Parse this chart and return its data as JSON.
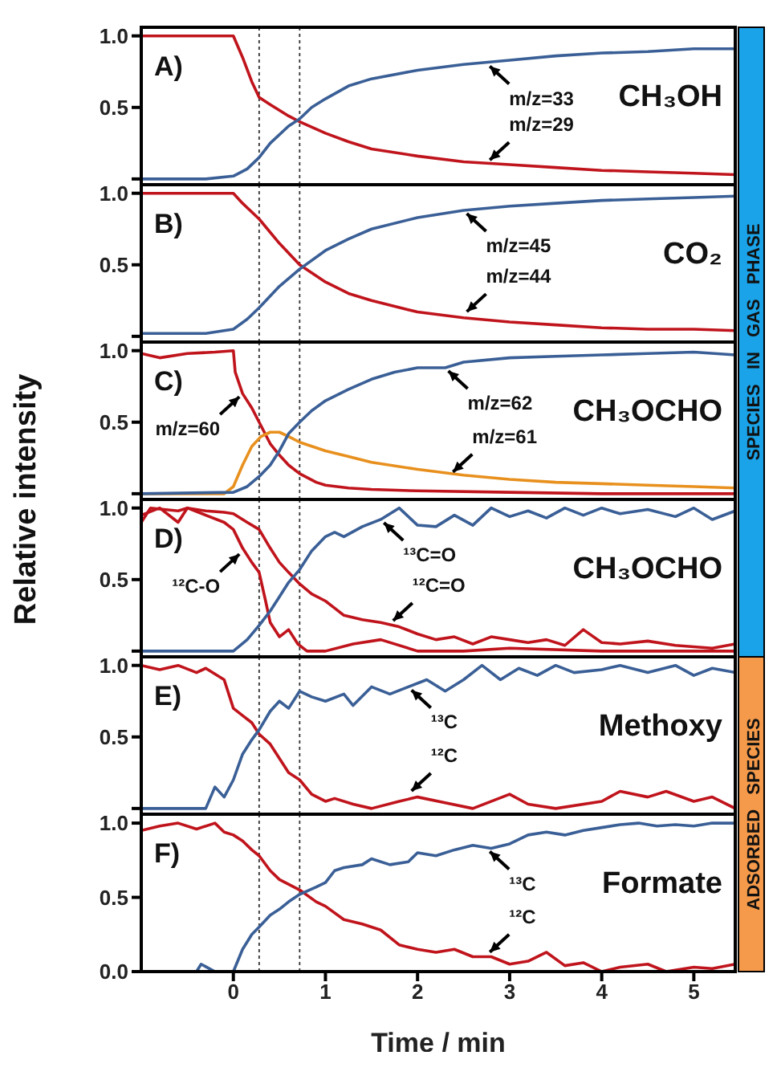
{
  "chart_data": [
    {
      "type": "line",
      "xlim": [
        -1,
        5.45
      ],
      "xticks": [
        0,
        1,
        2,
        3,
        4,
        5
      ],
      "ylim": [
        -0.04,
        1.06
      ],
      "yticks": [
        {
          "value": 0,
          "label": null
        },
        {
          "value": 0.5,
          "label": "0.5"
        },
        {
          "value": 1,
          "label": "1.0"
        }
      ],
      "tick_labels": "y",
      "ref_lines": [
        {
          "axis": "x",
          "value": 0.28,
          "line_style": "dotted",
          "color": "#333333"
        },
        {
          "axis": "x",
          "value": 0.72,
          "line_style": "dotted",
          "color": "#333333"
        }
      ],
      "annotations": [
        "A)",
        "CH₃OH",
        "SPECIES IN GAS PHASE",
        {
          "text": "m/z=33",
          "x": 2.75,
          "y": 0.81
        },
        {
          "text": "m/z=29",
          "x": 2.75,
          "y": 0.11
        }
      ],
      "series": [
        {
          "color": "#c0141c",
          "x": [
            -1,
            -0.5,
            0,
            0.1,
            0.2,
            0.28,
            0.4,
            0.6,
            0.72,
            1,
            1.25,
            1.5,
            2,
            2.5,
            3,
            3.5,
            4,
            4.5,
            5,
            5.45
          ],
          "values": [
            1,
            1,
            1,
            0.85,
            0.68,
            0.57,
            0.52,
            0.44,
            0.4,
            0.32,
            0.26,
            0.21,
            0.16,
            0.12,
            0.1,
            0.08,
            0.06,
            0.05,
            0.04,
            0.03
          ]
        },
        {
          "color": "#3a5f96",
          "x": [
            -1,
            -0.3,
            0,
            0.15,
            0.28,
            0.4,
            0.6,
            0.72,
            0.85,
            1,
            1.25,
            1.5,
            2,
            2.5,
            3,
            3.5,
            4,
            4.5,
            5,
            5.45
          ],
          "values": [
            0,
            0,
            0.02,
            0.07,
            0.15,
            0.25,
            0.37,
            0.42,
            0.5,
            0.56,
            0.65,
            0.7,
            0.76,
            0.8,
            0.83,
            0.86,
            0.88,
            0.89,
            0.91,
            0.91
          ]
        }
      ]
    },
    {
      "type": "line",
      "xlim": [
        -1,
        5.45
      ],
      "xticks": [
        0,
        1,
        2,
        3,
        4,
        5
      ],
      "ylim": [
        -0.04,
        1.06
      ],
      "yticks": [
        {
          "value": 0,
          "label": null
        },
        {
          "value": 0.5,
          "label": "0.5"
        },
        {
          "value": 1,
          "label": "1.0"
        }
      ],
      "tick_labels": "y",
      "ref_lines": [
        {
          "axis": "x",
          "value": 0.28,
          "line_style": "dotted",
          "color": "#333333"
        },
        {
          "axis": "x",
          "value": 0.72,
          "line_style": "dotted",
          "color": "#333333"
        }
      ],
      "annotations": [
        "B)",
        "CO₂",
        {
          "text": "m/z=45",
          "x": 2.5,
          "y": 0.88
        },
        {
          "text": "m/z=44",
          "x": 2.5,
          "y": 0.15
        }
      ],
      "series": [
        {
          "color": "#c0141c",
          "x": [
            -1,
            -0.5,
            0,
            0.1,
            0.28,
            0.5,
            0.72,
            1,
            1.25,
            1.5,
            2,
            2.5,
            3,
            3.5,
            4,
            4.5,
            5,
            5.45
          ],
          "values": [
            1,
            1,
            1,
            0.93,
            0.82,
            0.65,
            0.5,
            0.38,
            0.3,
            0.25,
            0.17,
            0.13,
            0.1,
            0.08,
            0.06,
            0.05,
            0.05,
            0.04
          ]
        },
        {
          "color": "#3a5f96",
          "x": [
            -1,
            -0.3,
            0,
            0.15,
            0.28,
            0.5,
            0.72,
            1,
            1.25,
            1.5,
            2,
            2.5,
            3,
            3.5,
            4,
            4.5,
            5,
            5.45
          ],
          "values": [
            0.02,
            0.02,
            0.05,
            0.12,
            0.2,
            0.35,
            0.47,
            0.6,
            0.68,
            0.75,
            0.83,
            0.88,
            0.91,
            0.93,
            0.95,
            0.96,
            0.97,
            0.98
          ]
        }
      ]
    },
    {
      "type": "line",
      "xlim": [
        -1,
        5.45
      ],
      "xticks": [
        0,
        1,
        2,
        3,
        4,
        5
      ],
      "ylim": [
        -0.04,
        1.06
      ],
      "yticks": [
        {
          "value": 0,
          "label": null
        },
        {
          "value": 0.5,
          "label": "0.5"
        },
        {
          "value": 1,
          "label": "1.0"
        }
      ],
      "tick_labels": "y",
      "ylabel": "Relative intensity",
      "ref_lines": [
        {
          "axis": "x",
          "value": 0.28,
          "line_style": "dotted",
          "color": "#333333"
        },
        {
          "axis": "x",
          "value": 0.72,
          "line_style": "dotted",
          "color": "#333333"
        }
      ],
      "annotations": [
        "C)",
        "CH₃OCHO",
        {
          "text": "m/z=60",
          "x": 0.1,
          "y": 0.7
        },
        {
          "text": "m/z=62",
          "x": 2.3,
          "y": 0.88
        },
        {
          "text": "m/z=61",
          "x": 2.35,
          "y": 0.13
        }
      ],
      "series": [
        {
          "color": "#c0141c",
          "x": [
            -1,
            -0.8,
            -0.5,
            -0.2,
            0,
            0.02,
            0.1,
            0.2,
            0.28,
            0.4,
            0.5,
            0.6,
            0.72,
            0.9,
            1,
            1.25,
            1.5,
            2,
            3,
            4,
            5.45
          ],
          "values": [
            0.98,
            0.95,
            0.98,
            0.99,
            1,
            0.85,
            0.7,
            0.6,
            0.5,
            0.35,
            0.27,
            0.2,
            0.14,
            0.08,
            0.06,
            0.04,
            0.03,
            0.02,
            0.01,
            0,
            0
          ]
        },
        {
          "color": "#e8901e",
          "x": [
            -1,
            -0.1,
            0,
            0.1,
            0.2,
            0.3,
            0.4,
            0.5,
            0.6,
            0.72,
            1,
            1.25,
            1.5,
            2,
            2.5,
            3,
            3.5,
            4,
            4.5,
            5,
            5.45
          ],
          "values": [
            0,
            0,
            0.05,
            0.2,
            0.33,
            0.4,
            0.43,
            0.43,
            0.4,
            0.36,
            0.3,
            0.26,
            0.22,
            0.17,
            0.13,
            0.1,
            0.08,
            0.07,
            0.06,
            0.05,
            0.04
          ]
        },
        {
          "color": "#3a5f96",
          "x": [
            -1,
            0,
            0.15,
            0.28,
            0.4,
            0.5,
            0.6,
            0.72,
            0.85,
            1,
            1.25,
            1.5,
            1.75,
            2,
            2.3,
            2.5,
            3,
            3.5,
            4,
            4.5,
            5,
            5.45
          ],
          "values": [
            0,
            0.01,
            0.05,
            0.12,
            0.2,
            0.3,
            0.42,
            0.5,
            0.58,
            0.65,
            0.73,
            0.8,
            0.85,
            0.88,
            0.88,
            0.92,
            0.95,
            0.96,
            0.97,
            0.98,
            0.99,
            0.97
          ]
        }
      ]
    },
    {
      "type": "line",
      "xlim": [
        -1,
        5.45
      ],
      "xticks": [
        0,
        1,
        2,
        3,
        4,
        5
      ],
      "ylim": [
        -0.04,
        1.06
      ],
      "yticks": [
        {
          "value": 0,
          "label": null
        },
        {
          "value": 0.5,
          "label": "0.5"
        },
        {
          "value": 1,
          "label": "1.0"
        }
      ],
      "tick_labels": "y",
      "ref_lines": [
        {
          "axis": "x",
          "value": 0.28,
          "line_style": "dotted",
          "color": "#333333"
        },
        {
          "axis": "x",
          "value": 0.72,
          "line_style": "dotted",
          "color": "#333333"
        }
      ],
      "annotations": [
        "D)",
        "CH₃OCHO",
        {
          "text": "¹²C-O",
          "x": 0.1,
          "y": 0.7
        },
        {
          "text": "¹³C=O",
          "x": 1.6,
          "y": 0.92
        },
        {
          "text": "¹²C=O",
          "x": 1.7,
          "y": 0.19
        }
      ],
      "series": [
        {
          "color": "#c0141c",
          "x": [
            -1,
            -0.9,
            -0.6,
            -0.5,
            -0.3,
            -0.1,
            0,
            0.15,
            0.28,
            0.4,
            0.5,
            0.6,
            0.72,
            0.85,
            1,
            1.1,
            1.2,
            1.4,
            1.6,
            1.8,
            2,
            2.2,
            2.4,
            2.6,
            2.8,
            3,
            3.2,
            3.4,
            3.6,
            3.8,
            4,
            4.2,
            4.5,
            4.8,
            5,
            5.2,
            5.45
          ],
          "values": [
            0.9,
            1,
            0.98,
            1,
            0.98,
            0.97,
            0.96,
            0.9,
            0.85,
            0.72,
            0.62,
            0.55,
            0.47,
            0.4,
            0.35,
            0.3,
            0.25,
            0.22,
            0.2,
            0.17,
            0.12,
            0.08,
            0.1,
            0.05,
            0.1,
            0.08,
            0.06,
            0.08,
            0.04,
            0.15,
            0.06,
            0.05,
            0.07,
            0.04,
            0.03,
            0.02,
            0.05
          ]
        },
        {
          "color": "#c0141c",
          "x": [
            -1,
            -0.8,
            -0.6,
            -0.5,
            -0.3,
            -0.1,
            0,
            0.1,
            0.2,
            0.28,
            0.35,
            0.4,
            0.5,
            0.6,
            0.7,
            0.8,
            1,
            1.3,
            1.6,
            2,
            2.5,
            3,
            4,
            5,
            5.45
          ],
          "values": [
            0.95,
            1,
            0.9,
            1,
            0.95,
            0.9,
            0.85,
            0.72,
            0.62,
            0.55,
            0.35,
            0.2,
            0.1,
            0.15,
            0.05,
            0,
            0,
            0.05,
            0.08,
            0,
            0,
            0.02,
            0,
            0,
            0
          ]
        },
        {
          "color": "#3a5f96",
          "x": [
            -1,
            -0.1,
            0,
            0.15,
            0.28,
            0.4,
            0.5,
            0.6,
            0.72,
            0.85,
            1,
            1.1,
            1.2,
            1.4,
            1.6,
            1.8,
            2,
            2.2,
            2.4,
            2.6,
            2.8,
            3,
            3.2,
            3.4,
            3.6,
            3.8,
            4,
            4.2,
            4.5,
            4.8,
            5,
            5.2,
            5.45
          ],
          "values": [
            0,
            0,
            0,
            0.08,
            0.18,
            0.28,
            0.38,
            0.48,
            0.57,
            0.7,
            0.8,
            0.83,
            0.8,
            0.87,
            0.92,
            1,
            0.88,
            0.87,
            0.95,
            0.88,
            1,
            0.94,
            0.98,
            0.93,
            1,
            0.95,
            1,
            0.96,
            0.99,
            0.94,
            1,
            0.92,
            0.98
          ]
        }
      ]
    },
    {
      "type": "line",
      "xlim": [
        -1,
        5.45
      ],
      "xticks": [
        0,
        1,
        2,
        3,
        4,
        5
      ],
      "ylim": [
        -0.04,
        1.06
      ],
      "yticks": [
        {
          "value": 0,
          "label": null
        },
        {
          "value": 0.5,
          "label": "0.5"
        },
        {
          "value": 1,
          "label": "1.0"
        }
      ],
      "tick_labels": "y",
      "ref_lines": [
        {
          "axis": "x",
          "value": 0.28,
          "line_style": "dotted",
          "color": "#333333"
        },
        {
          "axis": "x",
          "value": 0.72,
          "line_style": "dotted",
          "color": "#333333"
        }
      ],
      "annotations": [
        "E)",
        "Methoxy",
        "ADSORBED SPECIES",
        {
          "text": "¹³C",
          "x": 1.9,
          "y": 0.85
        },
        {
          "text": "¹²C",
          "x": 1.9,
          "y": 0.1
        }
      ],
      "series": [
        {
          "color": "#c0141c",
          "x": [
            -1,
            -0.8,
            -0.6,
            -0.4,
            -0.3,
            -0.1,
            0,
            0.1,
            0.2,
            0.28,
            0.4,
            0.5,
            0.6,
            0.72,
            0.85,
            1,
            1.1,
            1.3,
            1.5,
            1.8,
            2,
            2.3,
            2.6,
            3,
            3.2,
            3.5,
            4,
            4.2,
            4.5,
            4.7,
            5,
            5.2,
            5.45
          ],
          "values": [
            1,
            0.97,
            1,
            0.95,
            0.98,
            0.9,
            0.7,
            0.65,
            0.6,
            0.52,
            0.45,
            0.35,
            0.25,
            0.2,
            0.1,
            0.05,
            0.07,
            0.03,
            0,
            0.05,
            0.08,
            0.04,
            0,
            0.1,
            0.03,
            0,
            0.05,
            0.12,
            0.08,
            0.12,
            0.05,
            0.08,
            0
          ]
        },
        {
          "color": "#3a5f96",
          "x": [
            -1,
            -0.3,
            -0.2,
            -0.1,
            0,
            0.1,
            0.2,
            0.28,
            0.4,
            0.5,
            0.6,
            0.72,
            0.85,
            1,
            1.2,
            1.3,
            1.5,
            1.7,
            1.9,
            2.1,
            2.3,
            2.5,
            2.7,
            2.9,
            3.1,
            3.3,
            3.5,
            3.7,
            4,
            4.2,
            4.5,
            4.8,
            5,
            5.2,
            5.45
          ],
          "values": [
            0,
            0,
            0.15,
            0.08,
            0.2,
            0.38,
            0.48,
            0.55,
            0.68,
            0.75,
            0.7,
            0.82,
            0.78,
            0.75,
            0.8,
            0.72,
            0.85,
            0.8,
            0.85,
            0.9,
            0.82,
            0.9,
            1,
            0.9,
            0.98,
            0.93,
            1,
            0.95,
            0.97,
            1,
            0.95,
            1,
            0.93,
            0.98,
            0.95
          ]
        }
      ]
    },
    {
      "type": "line",
      "xlim": [
        -1,
        5.45
      ],
      "xticks": [
        0,
        1,
        2,
        3,
        4,
        5
      ],
      "ylim": [
        0,
        1.06
      ],
      "yticks": [
        {
          "value": 0,
          "label": "0.0"
        },
        {
          "value": 0.5,
          "label": "0.5"
        },
        {
          "value": 1,
          "label": "1.0"
        }
      ],
      "xlabel": "Time / min",
      "ref_lines": [
        {
          "axis": "x",
          "value": 0.28,
          "line_style": "dotted",
          "color": "#333333"
        },
        {
          "axis": "x",
          "value": 0.72,
          "line_style": "dotted",
          "color": "#333333"
        }
      ],
      "annotations": [
        "F)",
        "Formate",
        {
          "text": "¹³C",
          "x": 2.75,
          "y": 0.83
        },
        {
          "text": "¹²C",
          "x": 2.75,
          "y": 0.11
        }
      ],
      "series": [
        {
          "color": "#c0141c",
          "x": [
            -1,
            -0.8,
            -0.6,
            -0.4,
            -0.2,
            -0.1,
            0,
            0.1,
            0.2,
            0.28,
            0.4,
            0.5,
            0.72,
            0.9,
            1,
            1.2,
            1.4,
            1.6,
            1.8,
            2,
            2.2,
            2.4,
            2.6,
            2.8,
            3,
            3.2,
            3.4,
            3.6,
            3.8,
            4,
            4.2,
            4.5,
            4.7,
            5,
            5.2,
            5.45
          ],
          "values": [
            0.95,
            0.98,
            1,
            0.96,
            1,
            0.94,
            0.92,
            0.88,
            0.82,
            0.78,
            0.68,
            0.62,
            0.55,
            0.47,
            0.44,
            0.35,
            0.32,
            0.28,
            0.18,
            0.15,
            0.13,
            0.15,
            0.1,
            0.1,
            0.05,
            0.07,
            0.13,
            0.04,
            0.06,
            0,
            0.03,
            0.05,
            0,
            0.03,
            0.02,
            0.05
          ]
        },
        {
          "color": "#3a5f96",
          "x": [
            -0.4,
            -0.35,
            -0.2,
            0,
            0.1,
            0.2,
            0.28,
            0.4,
            0.5,
            0.6,
            0.72,
            0.9,
            1,
            1.1,
            1.2,
            1.4,
            1.5,
            1.7,
            1.9,
            2,
            2.2,
            2.4,
            2.6,
            2.8,
            3,
            3.2,
            3.4,
            3.6,
            3.8,
            4,
            4.2,
            4.4,
            4.6,
            4.8,
            5,
            5.2,
            5.45
          ],
          "values": [
            0,
            0.05,
            0,
            0,
            0.15,
            0.25,
            0.3,
            0.38,
            0.42,
            0.47,
            0.52,
            0.57,
            0.6,
            0.68,
            0.7,
            0.72,
            0.76,
            0.72,
            0.74,
            0.8,
            0.78,
            0.82,
            0.85,
            0.83,
            0.86,
            0.92,
            0.94,
            0.92,
            0.95,
            0.97,
            0.99,
            1,
            0.98,
            0.99,
            0.98,
            1,
            1
          ]
        }
      ]
    }
  ]
}
